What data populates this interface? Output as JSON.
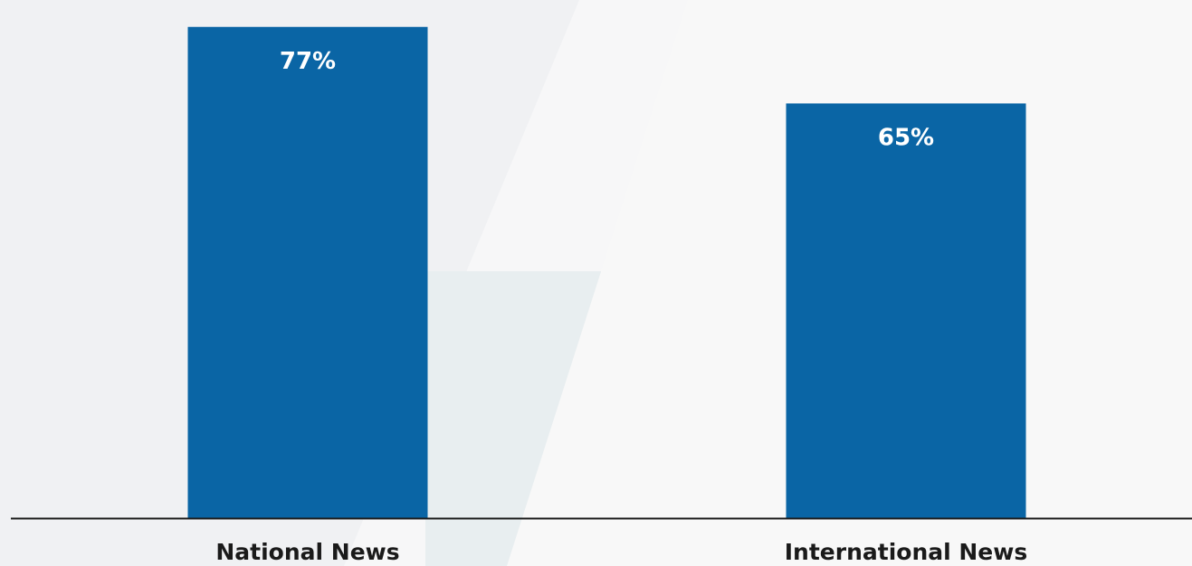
{
  "chart_data": {
    "type": "bar",
    "categories": [
      "National News",
      "International News"
    ],
    "values": [
      77,
      65
    ],
    "value_labels": [
      "77%",
      "65%"
    ],
    "title": "",
    "xlabel": "",
    "ylabel": "",
    "ylim": [
      0,
      80
    ],
    "grid": false,
    "legend": "none",
    "colors": {
      "bar": "#0a65a5",
      "axis": "#1a1a1a",
      "background": "#f7f7f8",
      "watermark": "#e9eef1"
    }
  }
}
